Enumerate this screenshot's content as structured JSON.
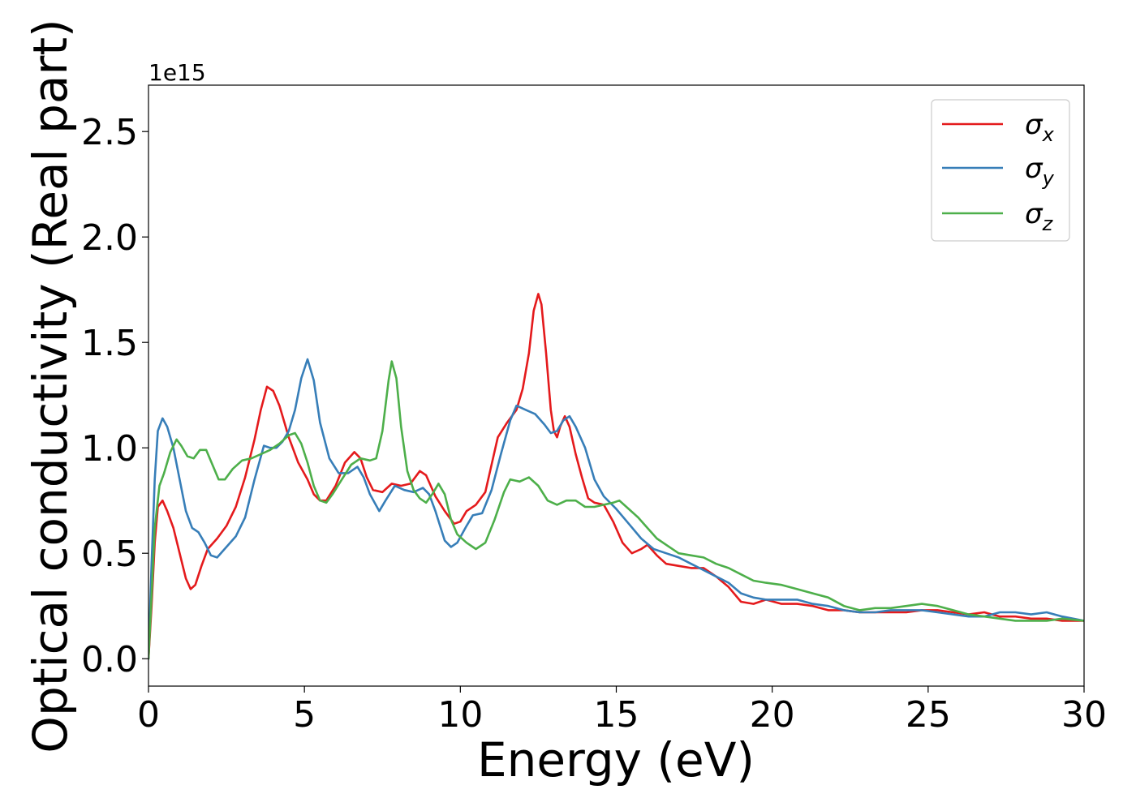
{
  "chart_data": {
    "type": "line",
    "xlabel": "Energy (eV)",
    "ylabel": "Optical conductivity (Real part)",
    "y_offset_text": "1e15",
    "xlim": [
      0,
      30
    ],
    "ylim": [
      -0.13,
      2.72
    ],
    "x_scale": "linear",
    "y_scale": "linear",
    "y_multiplier": 1000000000000000.0,
    "grid": false,
    "legend_position": "top-right",
    "x_ticks": [
      0,
      5,
      10,
      15,
      20,
      25,
      30
    ],
    "x_tick_labels": [
      "0",
      "5",
      "10",
      "15",
      "20",
      "25",
      "30"
    ],
    "y_ticks": [
      0.0,
      0.5,
      1.0,
      1.5,
      2.0,
      2.5
    ],
    "y_tick_labels": [
      "0.0",
      "0.5",
      "1.0",
      "1.5",
      "2.0",
      "2.5"
    ],
    "series": [
      {
        "name": "σx",
        "legend_symbol": "σ",
        "legend_subscript": "x",
        "color": "#e41a1c",
        "points": [
          [
            0,
            0
          ],
          [
            0.1,
            0.25
          ],
          [
            0.2,
            0.55
          ],
          [
            0.3,
            0.72
          ],
          [
            0.45,
            0.75
          ],
          [
            0.6,
            0.7
          ],
          [
            0.8,
            0.62
          ],
          [
            1.0,
            0.5
          ],
          [
            1.2,
            0.38
          ],
          [
            1.35,
            0.33
          ],
          [
            1.5,
            0.35
          ],
          [
            1.7,
            0.44
          ],
          [
            1.9,
            0.52
          ],
          [
            2.2,
            0.57
          ],
          [
            2.5,
            0.63
          ],
          [
            2.8,
            0.72
          ],
          [
            3.1,
            0.86
          ],
          [
            3.4,
            1.04
          ],
          [
            3.6,
            1.18
          ],
          [
            3.8,
            1.29
          ],
          [
            4.0,
            1.27
          ],
          [
            4.2,
            1.2
          ],
          [
            4.5,
            1.05
          ],
          [
            4.8,
            0.93
          ],
          [
            5.1,
            0.85
          ],
          [
            5.3,
            0.78
          ],
          [
            5.5,
            0.75
          ],
          [
            5.7,
            0.75
          ],
          [
            6.0,
            0.82
          ],
          [
            6.3,
            0.93
          ],
          [
            6.6,
            0.98
          ],
          [
            6.8,
            0.95
          ],
          [
            7.0,
            0.86
          ],
          [
            7.2,
            0.8
          ],
          [
            7.5,
            0.79
          ],
          [
            7.8,
            0.83
          ],
          [
            8.1,
            0.82
          ],
          [
            8.4,
            0.83
          ],
          [
            8.7,
            0.89
          ],
          [
            8.9,
            0.87
          ],
          [
            9.2,
            0.77
          ],
          [
            9.5,
            0.7
          ],
          [
            9.8,
            0.64
          ],
          [
            10.0,
            0.65
          ],
          [
            10.2,
            0.7
          ],
          [
            10.5,
            0.73
          ],
          [
            10.8,
            0.79
          ],
          [
            11.0,
            0.92
          ],
          [
            11.2,
            1.05
          ],
          [
            11.5,
            1.12
          ],
          [
            11.8,
            1.18
          ],
          [
            12.0,
            1.28
          ],
          [
            12.2,
            1.45
          ],
          [
            12.35,
            1.65
          ],
          [
            12.5,
            1.73
          ],
          [
            12.6,
            1.68
          ],
          [
            12.75,
            1.45
          ],
          [
            12.9,
            1.18
          ],
          [
            13.0,
            1.08
          ],
          [
            13.1,
            1.05
          ],
          [
            13.2,
            1.1
          ],
          [
            13.35,
            1.15
          ],
          [
            13.5,
            1.1
          ],
          [
            13.7,
            0.97
          ],
          [
            13.9,
            0.86
          ],
          [
            14.1,
            0.76
          ],
          [
            14.3,
            0.74
          ],
          [
            14.6,
            0.73
          ],
          [
            14.9,
            0.65
          ],
          [
            15.2,
            0.55
          ],
          [
            15.5,
            0.5
          ],
          [
            15.8,
            0.52
          ],
          [
            16.0,
            0.54
          ],
          [
            16.3,
            0.49
          ],
          [
            16.6,
            0.45
          ],
          [
            17.0,
            0.44
          ],
          [
            17.4,
            0.43
          ],
          [
            17.8,
            0.43
          ],
          [
            18.2,
            0.39
          ],
          [
            18.6,
            0.34
          ],
          [
            19.0,
            0.27
          ],
          [
            19.4,
            0.26
          ],
          [
            19.8,
            0.28
          ],
          [
            20.3,
            0.26
          ],
          [
            20.8,
            0.26
          ],
          [
            21.3,
            0.25
          ],
          [
            21.8,
            0.23
          ],
          [
            22.3,
            0.23
          ],
          [
            22.8,
            0.22
          ],
          [
            23.3,
            0.22
          ],
          [
            23.8,
            0.22
          ],
          [
            24.3,
            0.22
          ],
          [
            24.8,
            0.23
          ],
          [
            25.3,
            0.23
          ],
          [
            25.8,
            0.22
          ],
          [
            26.3,
            0.21
          ],
          [
            26.8,
            0.22
          ],
          [
            27.3,
            0.2
          ],
          [
            27.8,
            0.2
          ],
          [
            28.3,
            0.19
          ],
          [
            28.8,
            0.19
          ],
          [
            29.3,
            0.18
          ],
          [
            30.0,
            0.18
          ]
        ]
      },
      {
        "name": "σy",
        "legend_symbol": "σ",
        "legend_subscript": "y",
        "color": "#377eb8",
        "points": [
          [
            0,
            0
          ],
          [
            0.1,
            0.45
          ],
          [
            0.2,
            0.85
          ],
          [
            0.3,
            1.08
          ],
          [
            0.45,
            1.14
          ],
          [
            0.6,
            1.1
          ],
          [
            0.8,
            1.0
          ],
          [
            1.0,
            0.85
          ],
          [
            1.2,
            0.7
          ],
          [
            1.4,
            0.62
          ],
          [
            1.6,
            0.6
          ],
          [
            1.8,
            0.55
          ],
          [
            2.0,
            0.49
          ],
          [
            2.2,
            0.48
          ],
          [
            2.5,
            0.53
          ],
          [
            2.8,
            0.58
          ],
          [
            3.1,
            0.67
          ],
          [
            3.4,
            0.85
          ],
          [
            3.7,
            1.01
          ],
          [
            3.9,
            1.0
          ],
          [
            4.1,
            1.0
          ],
          [
            4.3,
            1.03
          ],
          [
            4.5,
            1.08
          ],
          [
            4.7,
            1.18
          ],
          [
            4.9,
            1.33
          ],
          [
            5.1,
            1.42
          ],
          [
            5.3,
            1.32
          ],
          [
            5.5,
            1.12
          ],
          [
            5.8,
            0.95
          ],
          [
            6.1,
            0.88
          ],
          [
            6.4,
            0.88
          ],
          [
            6.7,
            0.91
          ],
          [
            6.9,
            0.86
          ],
          [
            7.1,
            0.78
          ],
          [
            7.4,
            0.7
          ],
          [
            7.6,
            0.75
          ],
          [
            7.9,
            0.82
          ],
          [
            8.2,
            0.8
          ],
          [
            8.5,
            0.79
          ],
          [
            8.8,
            0.81
          ],
          [
            9.0,
            0.78
          ],
          [
            9.2,
            0.7
          ],
          [
            9.5,
            0.56
          ],
          [
            9.7,
            0.53
          ],
          [
            9.9,
            0.55
          ],
          [
            10.2,
            0.63
          ],
          [
            10.4,
            0.68
          ],
          [
            10.7,
            0.69
          ],
          [
            11.0,
            0.8
          ],
          [
            11.3,
            0.97
          ],
          [
            11.6,
            1.13
          ],
          [
            11.8,
            1.2
          ],
          [
            12.1,
            1.18
          ],
          [
            12.4,
            1.16
          ],
          [
            12.7,
            1.11
          ],
          [
            12.9,
            1.07
          ],
          [
            13.1,
            1.08
          ],
          [
            13.3,
            1.13
          ],
          [
            13.5,
            1.15
          ],
          [
            13.7,
            1.1
          ],
          [
            14.0,
            1.0
          ],
          [
            14.3,
            0.85
          ],
          [
            14.6,
            0.77
          ],
          [
            15.0,
            0.71
          ],
          [
            15.4,
            0.64
          ],
          [
            15.8,
            0.57
          ],
          [
            16.2,
            0.52
          ],
          [
            16.6,
            0.5
          ],
          [
            17.0,
            0.48
          ],
          [
            17.4,
            0.45
          ],
          [
            17.8,
            0.42
          ],
          [
            18.2,
            0.39
          ],
          [
            18.6,
            0.36
          ],
          [
            19.0,
            0.31
          ],
          [
            19.4,
            0.29
          ],
          [
            19.8,
            0.28
          ],
          [
            20.3,
            0.28
          ],
          [
            20.8,
            0.28
          ],
          [
            21.3,
            0.26
          ],
          [
            21.8,
            0.25
          ],
          [
            22.3,
            0.23
          ],
          [
            22.8,
            0.22
          ],
          [
            23.3,
            0.22
          ],
          [
            23.8,
            0.23
          ],
          [
            24.3,
            0.23
          ],
          [
            24.8,
            0.23
          ],
          [
            25.3,
            0.22
          ],
          [
            25.8,
            0.21
          ],
          [
            26.3,
            0.2
          ],
          [
            26.8,
            0.2
          ],
          [
            27.3,
            0.22
          ],
          [
            27.8,
            0.22
          ],
          [
            28.3,
            0.21
          ],
          [
            28.8,
            0.22
          ],
          [
            29.3,
            0.2
          ],
          [
            30.0,
            0.18
          ]
        ]
      },
      {
        "name": "σz",
        "legend_symbol": "σ",
        "legend_subscript": "z",
        "color": "#4daf4a",
        "points": [
          [
            0,
            0
          ],
          [
            0.1,
            0.3
          ],
          [
            0.2,
            0.62
          ],
          [
            0.35,
            0.82
          ],
          [
            0.5,
            0.88
          ],
          [
            0.7,
            0.98
          ],
          [
            0.9,
            1.04
          ],
          [
            1.05,
            1.01
          ],
          [
            1.25,
            0.96
          ],
          [
            1.45,
            0.95
          ],
          [
            1.65,
            0.99
          ],
          [
            1.85,
            0.99
          ],
          [
            2.05,
            0.92
          ],
          [
            2.25,
            0.85
          ],
          [
            2.45,
            0.85
          ],
          [
            2.7,
            0.9
          ],
          [
            3.0,
            0.94
          ],
          [
            3.3,
            0.95
          ],
          [
            3.6,
            0.97
          ],
          [
            3.9,
            0.99
          ],
          [
            4.2,
            1.02
          ],
          [
            4.5,
            1.06
          ],
          [
            4.7,
            1.07
          ],
          [
            4.9,
            1.02
          ],
          [
            5.1,
            0.93
          ],
          [
            5.3,
            0.82
          ],
          [
            5.5,
            0.75
          ],
          [
            5.7,
            0.74
          ],
          [
            5.9,
            0.78
          ],
          [
            6.2,
            0.85
          ],
          [
            6.5,
            0.92
          ],
          [
            6.8,
            0.95
          ],
          [
            7.1,
            0.94
          ],
          [
            7.3,
            0.95
          ],
          [
            7.5,
            1.08
          ],
          [
            7.7,
            1.32
          ],
          [
            7.8,
            1.41
          ],
          [
            7.95,
            1.33
          ],
          [
            8.1,
            1.1
          ],
          [
            8.3,
            0.89
          ],
          [
            8.5,
            0.8
          ],
          [
            8.7,
            0.76
          ],
          [
            8.9,
            0.74
          ],
          [
            9.1,
            0.78
          ],
          [
            9.3,
            0.83
          ],
          [
            9.5,
            0.78
          ],
          [
            9.7,
            0.66
          ],
          [
            9.9,
            0.59
          ],
          [
            10.2,
            0.55
          ],
          [
            10.5,
            0.52
          ],
          [
            10.8,
            0.55
          ],
          [
            11.1,
            0.66
          ],
          [
            11.4,
            0.79
          ],
          [
            11.6,
            0.85
          ],
          [
            11.9,
            0.84
          ],
          [
            12.2,
            0.86
          ],
          [
            12.5,
            0.82
          ],
          [
            12.8,
            0.75
          ],
          [
            13.1,
            0.73
          ],
          [
            13.4,
            0.75
          ],
          [
            13.7,
            0.75
          ],
          [
            14.0,
            0.72
          ],
          [
            14.3,
            0.72
          ],
          [
            14.6,
            0.73
          ],
          [
            14.9,
            0.74
          ],
          [
            15.1,
            0.75
          ],
          [
            15.4,
            0.71
          ],
          [
            15.7,
            0.67
          ],
          [
            16.0,
            0.62
          ],
          [
            16.3,
            0.57
          ],
          [
            16.6,
            0.54
          ],
          [
            17.0,
            0.5
          ],
          [
            17.4,
            0.49
          ],
          [
            17.8,
            0.48
          ],
          [
            18.2,
            0.45
          ],
          [
            18.6,
            0.43
          ],
          [
            19.0,
            0.4
          ],
          [
            19.4,
            0.37
          ],
          [
            19.8,
            0.36
          ],
          [
            20.3,
            0.35
          ],
          [
            20.8,
            0.33
          ],
          [
            21.3,
            0.31
          ],
          [
            21.8,
            0.29
          ],
          [
            22.3,
            0.25
          ],
          [
            22.8,
            0.23
          ],
          [
            23.3,
            0.24
          ],
          [
            23.8,
            0.24
          ],
          [
            24.3,
            0.25
          ],
          [
            24.8,
            0.26
          ],
          [
            25.3,
            0.25
          ],
          [
            25.8,
            0.23
          ],
          [
            26.3,
            0.21
          ],
          [
            26.8,
            0.2
          ],
          [
            27.3,
            0.19
          ],
          [
            27.8,
            0.18
          ],
          [
            28.3,
            0.18
          ],
          [
            28.8,
            0.18
          ],
          [
            29.3,
            0.19
          ],
          [
            30.0,
            0.18
          ]
        ]
      }
    ]
  }
}
